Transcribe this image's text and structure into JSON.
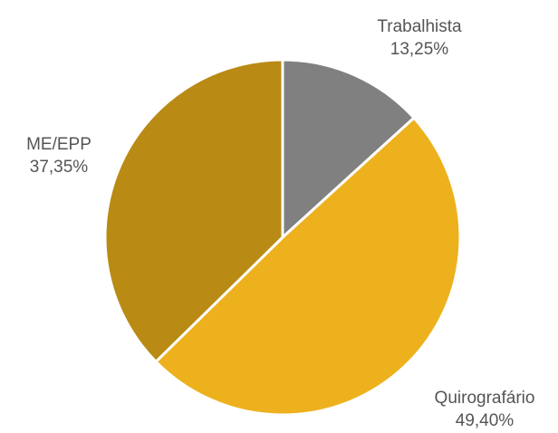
{
  "chart_data": {
    "type": "pie",
    "categories": [
      "Trabalhista",
      "Quirografário",
      "ME/EPP"
    ],
    "values": [
      13.25,
      49.4,
      37.35
    ],
    "value_labels": [
      "13,25%",
      "49,40%",
      "37,35%"
    ],
    "colors": [
      "#808080",
      "#edb11e",
      "#b98a14"
    ]
  }
}
